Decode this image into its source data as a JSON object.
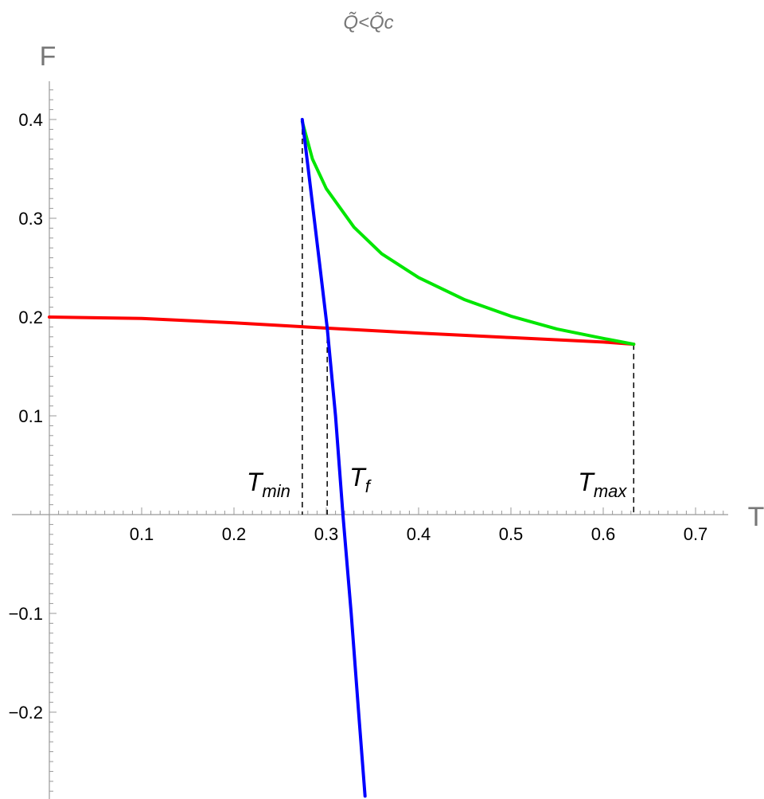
{
  "chart_data": {
    "type": "line",
    "title": "Q̃<Q̃c",
    "xlabel": "T",
    "ylabel": "F",
    "xlim": [
      -0.05,
      0.73
    ],
    "ylim": [
      -0.285,
      0.44
    ],
    "grid": false,
    "x_ticks": [
      0.1,
      0.2,
      0.3,
      0.4,
      0.5,
      0.6,
      0.7
    ],
    "x_tick_labels": [
      "0.1",
      "0.2",
      "0.3",
      "0.4",
      "0.5",
      "0.6",
      "0.7"
    ],
    "y_ticks": [
      0.4,
      0.3,
      0.2,
      0.1,
      -0.1,
      -0.2
    ],
    "y_tick_labels": [
      "0.4",
      "0.3",
      "0.2",
      "0.1",
      "−0.1",
      "−0.2"
    ],
    "series": [
      {
        "color": "#ff0000",
        "x": [
          0.0,
          0.1,
          0.2,
          0.3,
          0.4,
          0.5,
          0.6,
          0.633
        ],
        "y": [
          0.2,
          0.1986,
          0.1941,
          0.1888,
          0.1838,
          0.1792,
          0.1747,
          0.1725
        ]
      },
      {
        "color": "#00e600",
        "x": [
          0.274,
          0.285,
          0.3,
          0.33,
          0.36,
          0.4,
          0.45,
          0.5,
          0.55,
          0.6,
          0.633
        ],
        "y": [
          0.398,
          0.36,
          0.33,
          0.291,
          0.264,
          0.24,
          0.2175,
          0.2009,
          0.1878,
          0.1784,
          0.1725
        ]
      },
      {
        "color": "#0000ff",
        "x": [
          0.274,
          0.283,
          0.292,
          0.301,
          0.31,
          0.318,
          0.327,
          0.335,
          0.342
        ],
        "y": [
          0.4,
          0.33,
          0.26,
          0.1888,
          0.1,
          0.0,
          -0.1,
          -0.2,
          -0.285
        ]
      }
    ],
    "annotations": [
      {
        "main": "T",
        "sub": "min",
        "x": 0.274
      },
      {
        "main": "T",
        "sub": "f",
        "x": 0.301
      },
      {
        "main": "T",
        "sub": "max",
        "x": 0.633
      }
    ],
    "dashed_lines": [
      {
        "x": 0.274,
        "y_top": 0.4
      },
      {
        "x": 0.301,
        "y_top": 0.1888
      },
      {
        "x": 0.633,
        "y_top": 0.1725
      }
    ]
  }
}
